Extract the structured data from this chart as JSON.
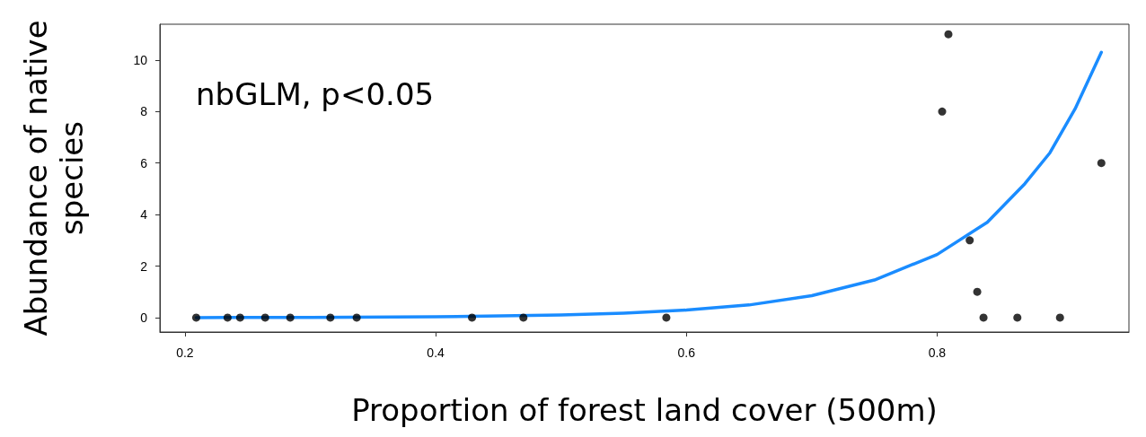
{
  "chart_data": {
    "type": "scatter",
    "xlabel": "Proportion of forest land cover (500m)",
    "ylabel": "Abundance of native\nspecies",
    "annotations": [
      "nbGLM, p<0.05"
    ],
    "xlim": [
      0.18,
      0.953
    ],
    "xticks": [
      0.2,
      0.4,
      0.6,
      0.8
    ],
    "ylim": [
      -0.56,
      11.39
    ],
    "yticks": [
      0,
      2,
      4,
      6,
      8,
      10
    ],
    "grid": false,
    "marker": "circle",
    "series": [
      {
        "color": "#000000",
        "x": [
          0.209,
          0.234,
          0.244,
          0.264,
          0.284,
          0.316,
          0.337,
          0.429,
          0.47,
          0.584,
          0.804,
          0.809,
          0.826,
          0.832,
          0.837,
          0.864,
          0.898,
          0.931
        ],
        "values": [
          0,
          0,
          0,
          0,
          0,
          0,
          0,
          0,
          0,
          0,
          8,
          11,
          3,
          1,
          0,
          0,
          0,
          6
        ]
      },
      {
        "type": "line",
        "color": "#1a8cff",
        "marker": "none",
        "x": [
          0.209,
          0.3,
          0.4,
          0.5,
          0.55,
          0.6,
          0.65,
          0.7,
          0.75,
          0.8,
          0.84,
          0.87,
          0.89,
          0.91,
          0.931
        ],
        "values": [
          0,
          0.01,
          0.03,
          0.1,
          0.17,
          0.29,
          0.49,
          0.85,
          1.46,
          2.45,
          3.7,
          5.2,
          6.4,
          8.1,
          10.3
        ]
      }
    ]
  }
}
